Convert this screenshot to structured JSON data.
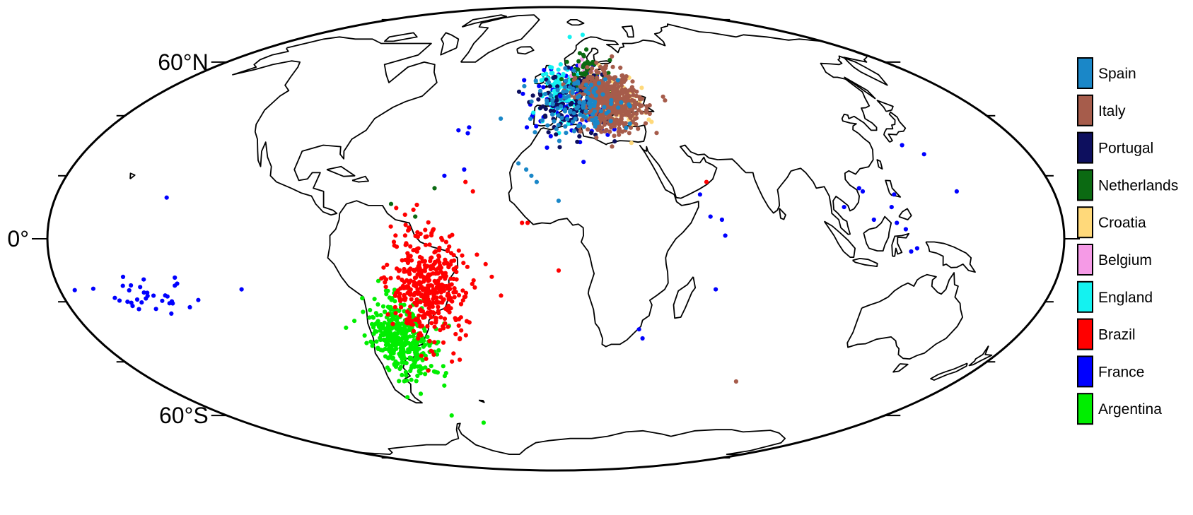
{
  "chart_data": {
    "type": "scatter",
    "projection": "Mollweide (world)",
    "lat_labels": [
      {
        "lat": 60,
        "text": "60°N"
      },
      {
        "lat": 0,
        "text": "0°"
      },
      {
        "lat": -60,
        "text": "60°S"
      }
    ],
    "legend_placement": "right",
    "series": [
      {
        "name": "Spain",
        "color": "#1a87c8",
        "clusters": [
          {
            "lon": 10,
            "lat": 44,
            "slon": 14,
            "slat": 7,
            "n": 120
          }
        ]
      },
      {
        "name": "Italy",
        "color": "#a65c4b",
        "clusters": [
          {
            "lon": 24,
            "lat": 45,
            "slon": 9,
            "slat": 7,
            "n": 520
          }
        ]
      },
      {
        "name": "Portugal",
        "color": "#0d0f5e",
        "clusters": [
          {
            "lon": 8,
            "lat": 44,
            "slon": 11,
            "slat": 7,
            "n": 130
          }
        ]
      },
      {
        "name": "Netherlands",
        "color": "#0b6a12",
        "clusters": [
          {
            "lon": 17,
            "lat": 53,
            "slon": 7,
            "slat": 6,
            "n": 90
          }
        ]
      },
      {
        "name": "Croatia",
        "color": "#ffd97a",
        "clusters": [
          {
            "lon": 29,
            "lat": 46,
            "slon": 7,
            "slat": 6,
            "n": 110
          }
        ]
      },
      {
        "name": "Belgium",
        "color": "#f59ae6",
        "clusters": [
          {
            "lon": 12,
            "lat": 56,
            "slon": 5,
            "slat": 4,
            "n": 8
          }
        ]
      },
      {
        "name": "England",
        "color": "#14f2f0",
        "clusters": [
          {
            "lon": 3,
            "lat": 49,
            "slon": 7,
            "slat": 6,
            "n": 120
          }
        ]
      },
      {
        "name": "Brazil",
        "color": "#ff0000",
        "clusters": [
          {
            "lon": -47,
            "lat": -16,
            "slon": 9,
            "slat": 12,
            "n": 420
          }
        ]
      },
      {
        "name": "France",
        "color": "#0000ff",
        "clusters": [
          {
            "lon": 8,
            "lat": 45,
            "slon": 12,
            "slat": 8,
            "n": 110
          },
          {
            "lon": -150,
            "lat": -17,
            "slon": 12,
            "slat": 5,
            "n": 34
          }
        ]
      },
      {
        "name": "Argentina",
        "color": "#00ee00",
        "clusters": [
          {
            "lon": -60,
            "lat": -32,
            "slon": 8,
            "slat": 9,
            "n": 380
          }
        ]
      }
    ],
    "extra_points": [
      {
        "lon": -35,
        "lat": 36,
        "color": "#0000ff"
      },
      {
        "lon": -35,
        "lat": 34,
        "color": "#0000ff"
      },
      {
        "lon": -39,
        "lat": 35,
        "color": "#0000ff"
      },
      {
        "lon": -41,
        "lat": 20,
        "color": "#0000ff"
      },
      {
        "lon": -34,
        "lat": 22,
        "color": "#0000ff"
      },
      {
        "lon": -140,
        "lat": 13,
        "color": "#0000ff"
      },
      {
        "lon": -114,
        "lat": -16,
        "color": "#0000ff"
      },
      {
        "lon": 52,
        "lat": 14,
        "color": "#0000ff"
      },
      {
        "lon": 55,
        "lat": 7,
        "color": "#0000ff"
      },
      {
        "lon": 59,
        "lat": 6,
        "color": "#0000ff"
      },
      {
        "lon": 60,
        "lat": 1,
        "color": "#0000ff"
      },
      {
        "lon": 58,
        "lat": -16,
        "color": "#0000ff"
      },
      {
        "lon": 32,
        "lat": -29,
        "color": "#0000ff"
      },
      {
        "lon": 34,
        "lat": -32,
        "color": "#0000ff"
      },
      {
        "lon": 103,
        "lat": 10,
        "color": "#0000ff"
      },
      {
        "lon": 110,
        "lat": 16,
        "color": "#0000ff"
      },
      {
        "lon": 111,
        "lat": 15,
        "color": "#0000ff"
      },
      {
        "lon": 113,
        "lat": 6,
        "color": "#0000ff"
      },
      {
        "lon": 120,
        "lat": 10,
        "color": "#0000ff"
      },
      {
        "lon": 122,
        "lat": 14,
        "color": "#0000ff"
      },
      {
        "lon": 121,
        "lat": 5,
        "color": "#0000ff"
      },
      {
        "lon": 124,
        "lat": 3,
        "color": "#0000ff"
      },
      {
        "lon": 134,
        "lat": 30,
        "color": "#0000ff"
      },
      {
        "lon": 140,
        "lat": 27,
        "color": "#0000ff"
      },
      {
        "lon": 145,
        "lat": 15,
        "color": "#0000ff"
      },
      {
        "lon": 126,
        "lat": -4,
        "color": "#0000ff"
      },
      {
        "lon": 128,
        "lat": -3,
        "color": "#0000ff"
      },
      {
        "lon": -2,
        "lat": 33,
        "color": "#0000ff"
      },
      {
        "lon": 2,
        "lat": 47,
        "color": "#0000ff"
      },
      {
        "lon": 55,
        "lat": 18,
        "color": "#ff0000"
      },
      {
        "lon": -10,
        "lat": 5,
        "color": "#ff0000"
      },
      {
        "lon": -12,
        "lat": 5,
        "color": "#ff0000"
      },
      {
        "lon": 1,
        "lat": -10,
        "color": "#ff0000"
      },
      {
        "lon": -20,
        "lat": -18,
        "color": "#ff0000"
      },
      {
        "lon": -23,
        "lat": -12,
        "color": "#ff0000"
      },
      {
        "lon": -25,
        "lat": -8,
        "color": "#ff0000"
      },
      {
        "lon": -28,
        "lat": -5,
        "color": "#ff0000"
      },
      {
        "lon": -30,
        "lat": 15,
        "color": "#ff0000"
      },
      {
        "lon": -33,
        "lat": 18,
        "color": "#ff0000"
      },
      {
        "lon": 81,
        "lat": -47,
        "color": "#a65c4b"
      },
      {
        "lon": -57,
        "lat": -60,
        "color": "#00ee00"
      },
      {
        "lon": -42,
        "lat": -63,
        "color": "#00ee00"
      },
      {
        "lon": -59,
        "lat": 11,
        "color": "#0b6a12"
      },
      {
        "lon": -44,
        "lat": 16,
        "color": "#0b6a12"
      },
      {
        "lon": -50,
        "lat": 7,
        "color": "#0b6a12"
      },
      {
        "lon": -7,
        "lat": 18,
        "color": "#1a87c8"
      },
      {
        "lon": -9,
        "lat": 20,
        "color": "#1a87c8"
      },
      {
        "lon": 1,
        "lat": 12,
        "color": "#1a87c8"
      },
      {
        "lon": -14,
        "lat": 24,
        "color": "#1a87c8"
      },
      {
        "lon": -11,
        "lat": 22,
        "color": "#1a87c8"
      },
      {
        "lon": -3,
        "lat": 58,
        "color": "#14f2f0"
      },
      {
        "lon": 20,
        "lat": 72,
        "color": "#14f2f0"
      },
      {
        "lon": 10,
        "lat": 71,
        "color": "#14f2f0"
      }
    ]
  }
}
